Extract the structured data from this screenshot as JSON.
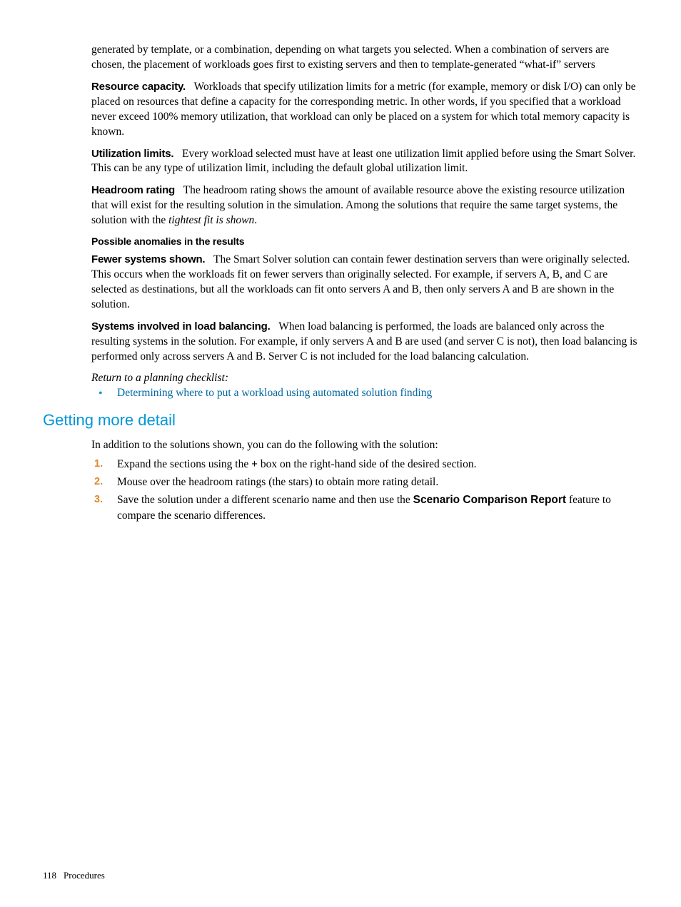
{
  "colors": {
    "accent_blue": "#0096d6",
    "link_blue": "#0066a1",
    "number_orange": "#d98a2b",
    "text": "#000000",
    "background": "#ffffff"
  },
  "typography": {
    "body_font": "Palatino",
    "body_size_pt": 11.5,
    "heading_font": "Arial",
    "label_font": "Arial Black"
  },
  "paragraphs": {
    "intro": "generated by template, or a combination, depending on what targets you selected. When a combination of servers are chosen, the placement of workloads goes first to existing servers and then to template-generated “what-if” servers",
    "resource_capacity": {
      "label": "Resource capacity.",
      "text": "Workloads that specify utilization limits for a metric (for example, memory or disk I/O) can only be placed on resources that define a capacity for the corresponding metric. In other words, if you specified that a workload never exceed 100% memory utilization, that workload can only be placed on a system for which total memory capacity is known."
    },
    "utilization_limits": {
      "label": "Utilization limits.",
      "text": "Every workload selected must have at least one utilization limit applied before using the Smart Solver. This can be any type of utilization limit, including the default global utilization limit."
    },
    "headroom_rating": {
      "label": "Headroom rating",
      "text_before": "The headroom rating shows the amount of available resource above the existing resource utilization that will exist for the resulting solution in the simulation. Among the solutions that require the same target systems, the solution with the ",
      "em": "tightest fit is shown",
      "text_after": "."
    }
  },
  "anomalies": {
    "heading": "Possible anomalies in the results",
    "fewer_systems": {
      "label": "Fewer systems shown.",
      "text": "The Smart Solver solution can contain fewer destination servers than were originally selected. This occurs when the workloads fit on fewer servers than originally selected. For example, if servers A, B, and C are selected as destinations, but all the workloads can fit onto servers A and B, then only servers A and B are shown in the solution."
    },
    "load_balancing": {
      "label": "Systems involved in load balancing.",
      "text": "When load balancing is performed, the loads are balanced only across the resulting systems in the solution. For example, if only servers A and B are used (and server C is not), then load balancing is performed only across servers A and B. Server C is not included for the load balancing calculation."
    }
  },
  "checklist": {
    "return_text": "Return to a planning checklist:",
    "item": "Determining where to put a workload using automated solution finding"
  },
  "detail_section": {
    "heading": "Getting more detail",
    "intro": "In addition to the solutions shown, you can do the following with the solution:",
    "steps": {
      "s1_before": "Expand the sections using the ",
      "s1_plus": "+",
      "s1_after": " box on the right-hand side of the desired section.",
      "s2": "Mouse over the headroom ratings (the stars) to obtain more rating detail.",
      "s3_before": "Save the solution under a different scenario name and then use the ",
      "s3_bold": "Scenario Comparison Report",
      "s3_after": " feature to compare the scenario differences."
    }
  },
  "footer": {
    "page_number": "118",
    "section": "Procedures"
  }
}
